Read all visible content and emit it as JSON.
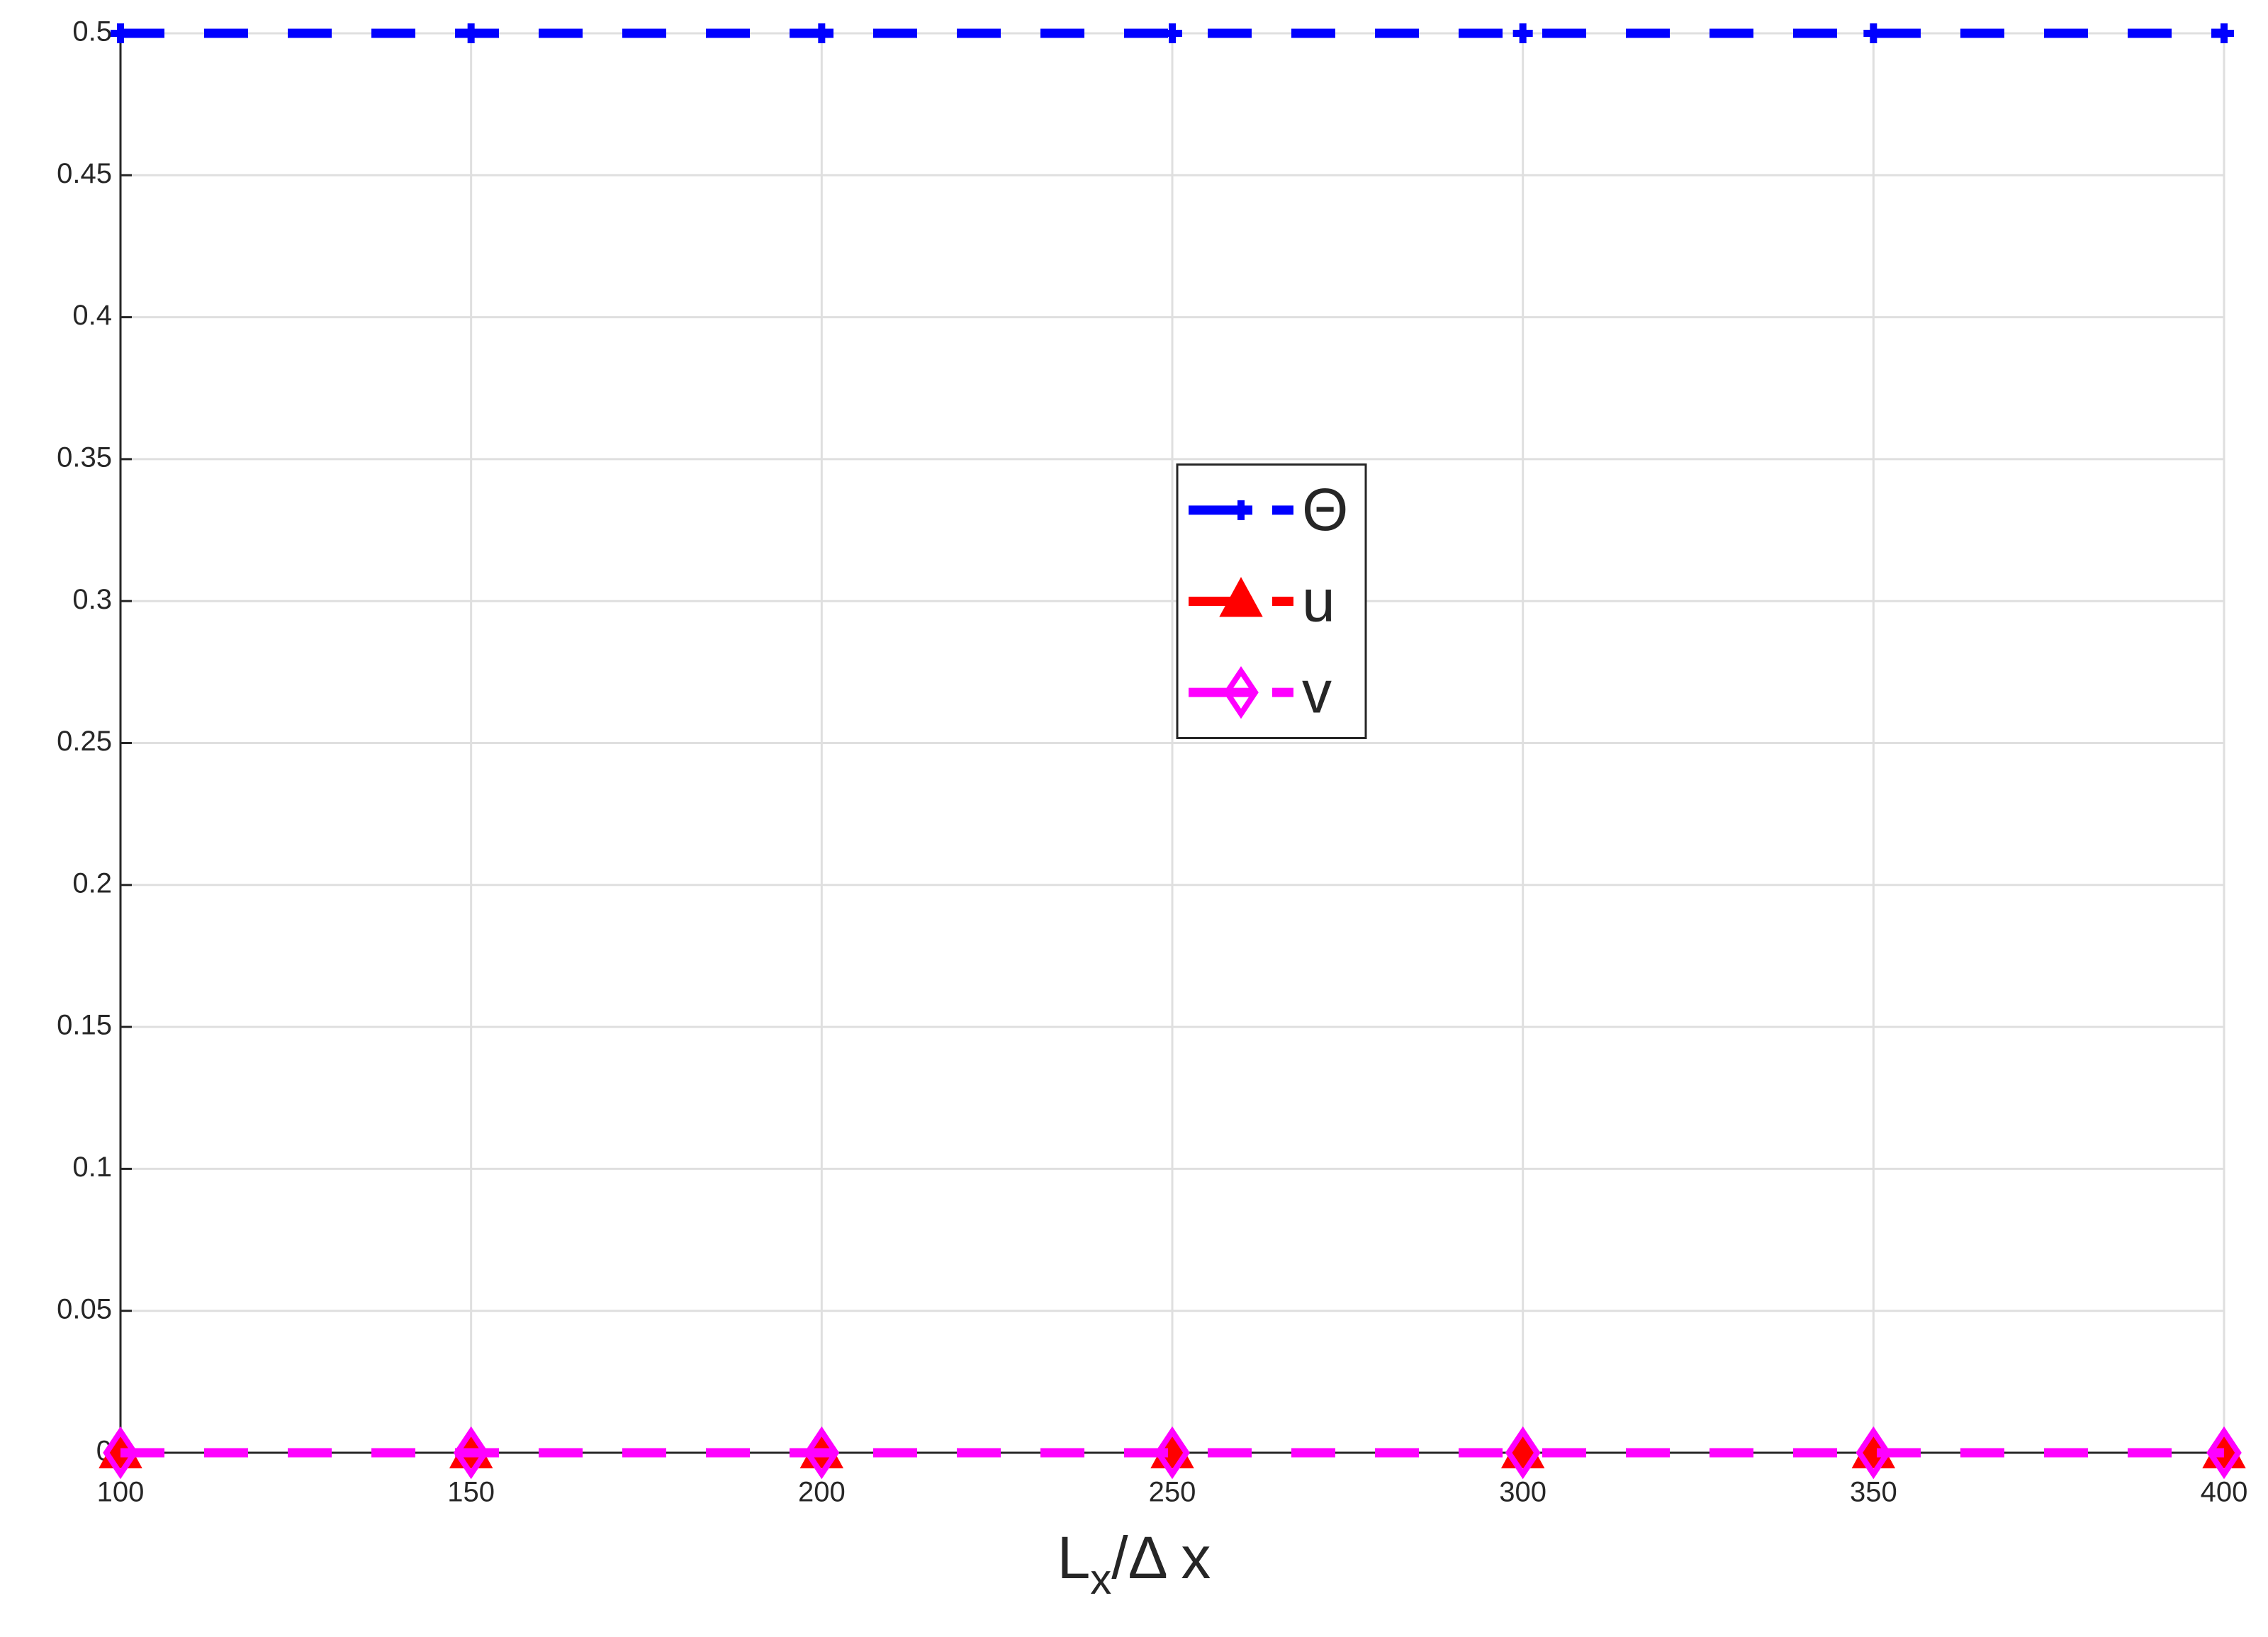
{
  "chart_data": {
    "type": "line",
    "x": [
      100,
      150,
      200,
      250,
      300,
      350,
      400
    ],
    "series": [
      {
        "name": "Θ",
        "color": "#0000ff",
        "marker": "plus",
        "values": [
          0.5,
          0.5,
          0.5,
          0.5,
          0.5,
          0.5,
          0.5
        ]
      },
      {
        "name": "u",
        "color": "#ff0000",
        "marker": "triangle",
        "values": [
          0,
          0,
          0,
          0,
          0,
          0,
          0
        ]
      },
      {
        "name": "v",
        "color": "#ff00ff",
        "marker": "diamond",
        "values": [
          0,
          0,
          0,
          0,
          0,
          0,
          0
        ]
      }
    ],
    "xlabel": [
      "L",
      "x",
      "/Δ x"
    ],
    "xlim": [
      100,
      400
    ],
    "xticks": [
      100,
      150,
      200,
      250,
      300,
      350,
      400
    ],
    "ylim": [
      0,
      0.5
    ],
    "yticks": [
      0,
      0.05,
      0.1,
      0.15,
      0.2,
      0.25,
      0.3,
      0.35,
      0.4,
      0.45,
      0.5
    ],
    "grid": true,
    "legend": "center"
  }
}
